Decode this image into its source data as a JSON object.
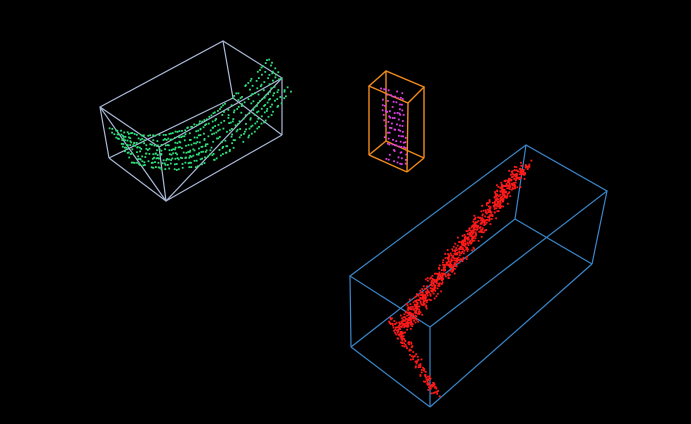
{
  "scene": {
    "background": "#000000",
    "objects": [
      {
        "name": "green-object",
        "box_color": "#a9b8d6",
        "point_color": "#2fe07a"
      },
      {
        "name": "magenta-object",
        "box_color": "#f08a1c",
        "point_color": "#e040e8"
      },
      {
        "name": "red-object",
        "box_color": "#3a86c8",
        "point_color": "#ff1a1a"
      }
    ]
  }
}
